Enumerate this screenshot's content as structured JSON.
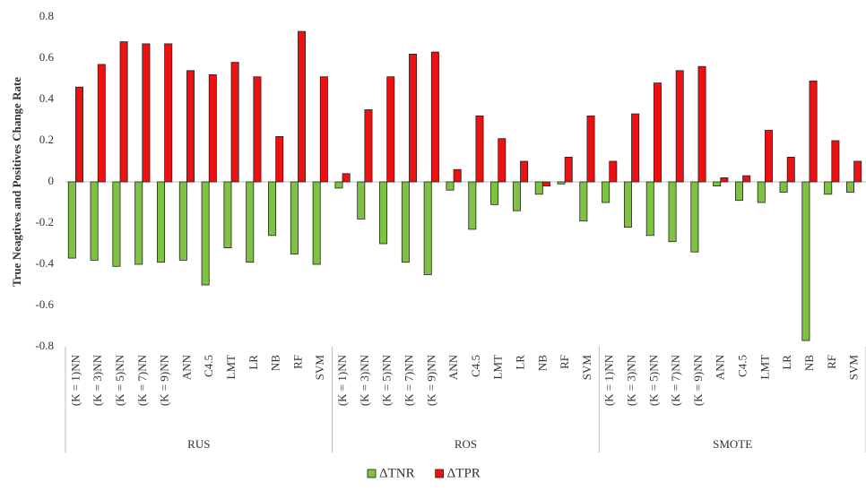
{
  "chart_data": {
    "type": "bar",
    "y_label": "True Neagtives and Positives Change Rate",
    "groups": [
      "RUS",
      "ROS",
      "SMOTE"
    ],
    "categories": [
      "(K = 1)NN",
      "(K = 3)NN",
      "(K = 5)NN",
      "(K = 7)NN",
      "(K = 9)NN",
      "ANN",
      "C4.5",
      "LMT",
      "LR",
      "NB",
      "RF",
      "SVM",
      "(K = 1)NN",
      "(K = 3)NN",
      "(K = 5)NN",
      "(K = 7)NN",
      "(K = 9)NN",
      "ANN",
      "C4.5",
      "LMT",
      "LR",
      "NB",
      "RF",
      "SVM",
      "(K = 1)NN",
      "(K = 3)NN",
      "(K = 5)NN",
      "(K = 7)NN",
      "(K = 9)NN",
      "ANN",
      "C4.5",
      "LMT",
      "LR",
      "NB",
      "RF",
      "SVM"
    ],
    "series": [
      {
        "name": "ΔTNR",
        "color": "#7fc241",
        "values": [
          -0.37,
          -0.38,
          -0.41,
          -0.4,
          -0.39,
          -0.38,
          -0.5,
          -0.32,
          -0.39,
          -0.26,
          -0.35,
          -0.4,
          -0.03,
          -0.18,
          -0.3,
          -0.39,
          -0.45,
          -0.04,
          -0.23,
          -0.11,
          -0.14,
          -0.06,
          -0.01,
          -0.19,
          -0.1,
          -0.22,
          -0.26,
          -0.29,
          -0.34,
          -0.02,
          -0.09,
          -0.1,
          -0.05,
          -0.77,
          -0.06,
          -0.05
        ]
      },
      {
        "name": "ΔTPR",
        "color": "#ee1111",
        "values": [
          0.46,
          0.57,
          0.68,
          0.67,
          0.67,
          0.54,
          0.52,
          0.58,
          0.51,
          0.22,
          0.73,
          0.51,
          0.04,
          0.35,
          0.51,
          0.62,
          0.63,
          0.06,
          0.32,
          0.21,
          0.1,
          -0.02,
          0.12,
          0.32,
          0.1,
          0.33,
          0.48,
          0.54,
          0.56,
          0.02,
          0.03,
          0.25,
          0.12,
          0.49,
          0.2,
          0.1
        ]
      }
    ],
    "ylim": [
      -0.8,
      0.8
    ],
    "yticks": [
      -0.8,
      -0.6,
      -0.4,
      -0.2,
      0,
      0.2,
      0.4,
      0.6,
      0.8
    ],
    "grid": false,
    "legend": "bottom"
  }
}
